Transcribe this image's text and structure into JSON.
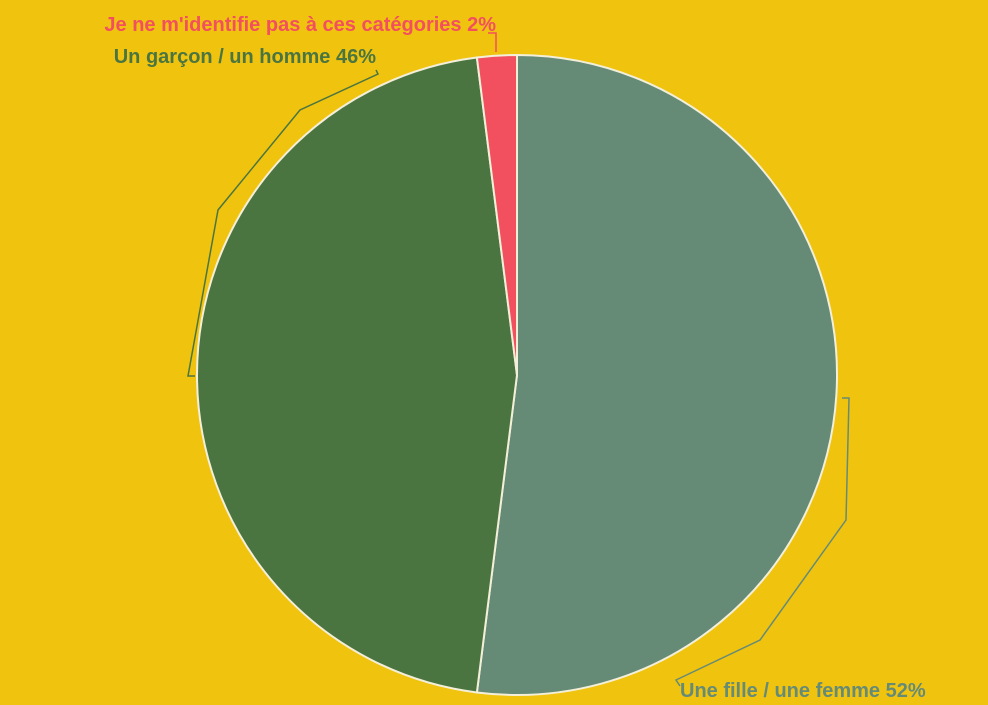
{
  "chart_data": {
    "type": "pie",
    "start_angle_deg": 0,
    "direction": "clockwise",
    "slices": [
      {
        "label": "Une fille / une femme",
        "value": 52,
        "display": "Une fille / une femme 52%",
        "color": "#658b77"
      },
      {
        "label": "Un garçon / un homme",
        "value": 46,
        "display": "Un garçon / un homme 46%",
        "color": "#4b7540"
      },
      {
        "label": "Je ne m'identifie pas à ces catégories",
        "value": 2,
        "display": "Je ne m'identifie pas à ces catégories 2%",
        "color": "#f2505e"
      }
    ],
    "label_colors": [
      "#658b77",
      "#4b7540",
      "#f2505e"
    ],
    "background": "#f0c30f",
    "slice_border_color": "#f3efd8"
  }
}
